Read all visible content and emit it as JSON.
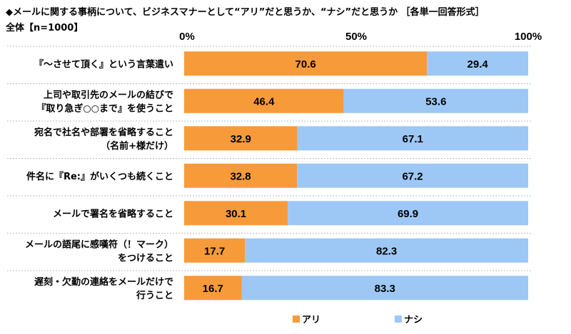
{
  "chart_data": {
    "type": "bar",
    "orientation": "horizontal",
    "stacked": true,
    "title": "◆メールに関する事柄について、ビジネスマナーとして“アリ”だと思うか、“ナシ”だと思うか ［各単一回答形式］",
    "subtitle": "全体【n=1000】",
    "categories": [
      [
        "『～させて頂く』という言葉遣い"
      ],
      [
        "上司や取引先のメールの結びで",
        "『取り急ぎ○○まで』を使うこと"
      ],
      [
        "宛名で社名や部署を省略すること",
        "（名前+様だけ）"
      ],
      [
        "件名に『Re:』がいくつも続くこと"
      ],
      [
        "メールで署名を省略すること"
      ],
      [
        "メールの語尾に感嘆符（！マーク）",
        "をつけること"
      ],
      [
        "遅刻・欠勤の連絡をメールだけで",
        "行うこと"
      ]
    ],
    "series": [
      {
        "name": "アリ",
        "color": "#F79A3A",
        "values": [
          70.6,
          46.4,
          32.9,
          32.8,
          30.1,
          17.7,
          16.7
        ]
      },
      {
        "name": "ナシ",
        "color": "#9DC8F5",
        "values": [
          29.4,
          53.6,
          67.1,
          67.2,
          69.9,
          82.3,
          83.3
        ]
      }
    ],
    "xlim": [
      0,
      100
    ],
    "x_ticks": [
      "0%",
      "50%",
      "100%"
    ],
    "legend_position": "bottom",
    "grid": false
  }
}
